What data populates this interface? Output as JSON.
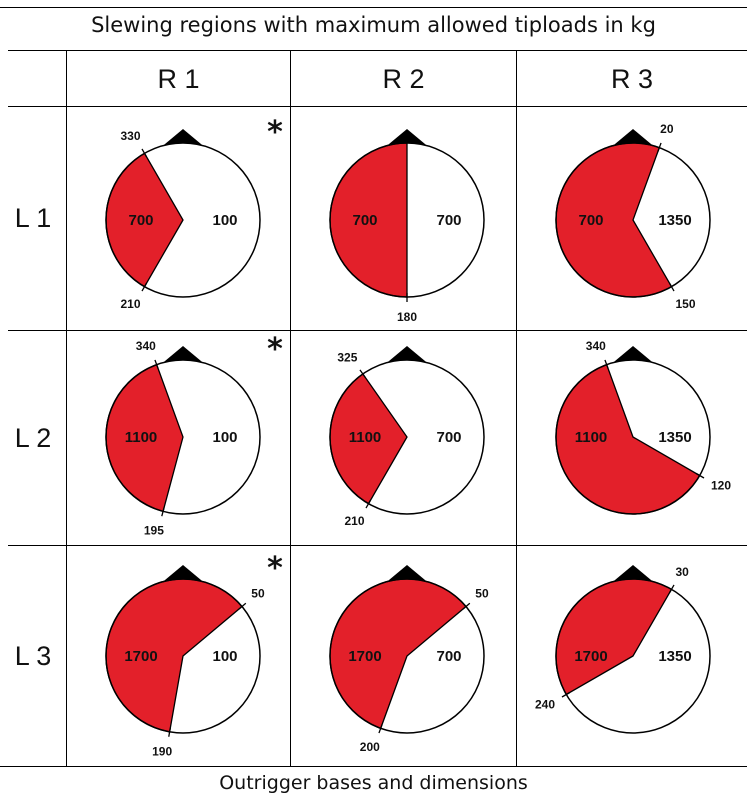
{
  "title": "Slewing regions with maximum allowed tiploads in kg",
  "footer": "Outrigger  bases and dimensions",
  "columns": [
    "R 1",
    "R 2",
    "R 3"
  ],
  "rows": [
    "L 1",
    "L 2",
    "L 3"
  ],
  "colors": {
    "restricted": "#e3202a",
    "allowed": "#ffffff",
    "outline": "#000000"
  },
  "asterisk": "*",
  "cells": [
    [
      {
        "id": "l1-r1",
        "restricted_load": "700",
        "allowed_load": "100",
        "angle_start": "330",
        "angle_end": "210",
        "start_deg": 330,
        "end_deg": 210,
        "asterisk": true
      },
      {
        "id": "l1-r2",
        "restricted_load": "700",
        "allowed_load": "700",
        "angle_start": "",
        "angle_end": "180",
        "start_deg": 0,
        "end_deg": 180,
        "asterisk": false
      },
      {
        "id": "l1-r3",
        "restricted_load": "700",
        "allowed_load": "1350",
        "angle_start": "20",
        "angle_end": "150",
        "start_deg": 20,
        "end_deg": 150,
        "asterisk": false
      }
    ],
    [
      {
        "id": "l2-r1",
        "restricted_load": "1100",
        "allowed_load": "100",
        "angle_start": "340",
        "angle_end": "195",
        "start_deg": 340,
        "end_deg": 195,
        "asterisk": true
      },
      {
        "id": "l2-r2",
        "restricted_load": "1100",
        "allowed_load": "700",
        "angle_start": "325",
        "angle_end": "210",
        "start_deg": 325,
        "end_deg": 210,
        "asterisk": false
      },
      {
        "id": "l2-r3",
        "restricted_load": "1100",
        "allowed_load": "1350",
        "angle_start": "340",
        "angle_end": "120",
        "start_deg": 340,
        "end_deg": 120,
        "asterisk": false
      }
    ],
    [
      {
        "id": "l3-r1",
        "restricted_load": "1700",
        "allowed_load": "100",
        "angle_start": "50",
        "angle_end": "190",
        "start_deg": 50,
        "end_deg": 190,
        "asterisk": true
      },
      {
        "id": "l3-r2",
        "restricted_load": "1700",
        "allowed_load": "700",
        "angle_start": "50",
        "angle_end": "200",
        "start_deg": 50,
        "end_deg": 200,
        "asterisk": false
      },
      {
        "id": "l3-r3",
        "restricted_load": "1700",
        "allowed_load": "1350",
        "angle_start": "30",
        "angle_end": "240",
        "start_deg": 30,
        "end_deg": 240,
        "asterisk": false
      }
    ]
  ]
}
